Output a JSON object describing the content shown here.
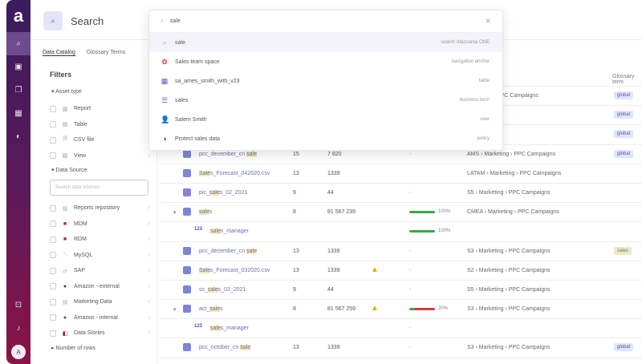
{
  "header": {
    "title": "Search"
  },
  "tabs": [
    "Data Catalog",
    "Glossary Terms"
  ],
  "filters": {
    "title": "Filters",
    "asset_type": {
      "label": "Asset type",
      "items": [
        "Report",
        "Table",
        "CSV file",
        "View"
      ]
    },
    "data_source": {
      "label": "Data Source",
      "placeholder": "Search data sources",
      "items": [
        "Reports repository",
        "MDM",
        "RDM",
        "MySQL",
        "SAP",
        "Amazon - external",
        "Marketing Data",
        "Amazon - internal",
        "Data Stories"
      ]
    },
    "more": "Number of rows"
  },
  "search": {
    "query": "sale",
    "results": [
      {
        "label": "sale",
        "kind": "search Ataccama ONE",
        "icon": "search-icon"
      },
      {
        "label": "Sales team space",
        "kind": "navigation anchor",
        "icon": "space-icon"
      },
      {
        "label": "sa_ames_smith_with_v23",
        "kind": "table",
        "icon": "table-icon"
      },
      {
        "label": "sales",
        "kind": "business term",
        "icon": "term-icon"
      },
      {
        "label": "Salem Smith",
        "kind": "user",
        "icon": "user-icon"
      },
      {
        "label": "Protect sales data",
        "kind": "policy",
        "icon": "shield-icon"
      }
    ]
  },
  "table": {
    "glossary_header": "Glossary term",
    "rows": [
      {
        "name": "",
        "path": "Marketing › PPC Campaigns",
        "tag": "global"
      },
      {
        "name": "",
        "tag": "global"
      },
      {
        "name": "",
        "tag": "global"
      },
      {
        "name": "pcc_december_cn sale",
        "c2": "15",
        "c3": "7 820",
        "dash": "-",
        "path": "AMS › Marketing › PPC Campaigns",
        "tag": "global"
      },
      {
        "name": "Sales_Forecast_042020.csv",
        "c2": "13",
        "c3": "1339",
        "path": "LATAM › Marketing › PPC Campaigns"
      },
      {
        "name": "pic_sales_02_2021",
        "c2": "9",
        "c3": "44",
        "dash": "-",
        "path": "S5 › Marketing › PPC Campaigns"
      },
      {
        "name": "sales",
        "c2": "8",
        "c3": "81 567 239",
        "pct": "100%",
        "path": "CMEA › Marketing › PPC Campaigns",
        "expand": true
      },
      {
        "name": "sales_manager",
        "pct": "100%",
        "sub": true
      },
      {
        "name": "pcc_december_cn sale",
        "c2": "13",
        "c3": "1339",
        "dash": "-",
        "path": "S3 › Marketing › PPC Campaigns",
        "tag": "sales"
      },
      {
        "name": "Sales_Forecast_032020.csv",
        "c2": "13",
        "c3": "1339",
        "warn": true,
        "dash": "-",
        "path": "S2 › Marketing › PPC Campaigns"
      },
      {
        "name": "ss_sales_02_2021",
        "c2": "9",
        "c3": "44",
        "dash": "-",
        "path": "S5 › Marketing › PPC Campaigns"
      },
      {
        "name": "act_sales",
        "c2": "8",
        "c3": "81 567 259",
        "warn": true,
        "pct": "20%",
        "red": true,
        "path": "S3 › Marketing › PPC Campaigns",
        "expand": true
      },
      {
        "name": "sales_manager",
        "dash": "-",
        "sub": true
      },
      {
        "name": "pcc_october_cn sale",
        "c2": "13",
        "c3": "1339",
        "dash": "-",
        "path": "S3 › Marketing › PPC Campaigns",
        "tag": "global"
      }
    ]
  }
}
